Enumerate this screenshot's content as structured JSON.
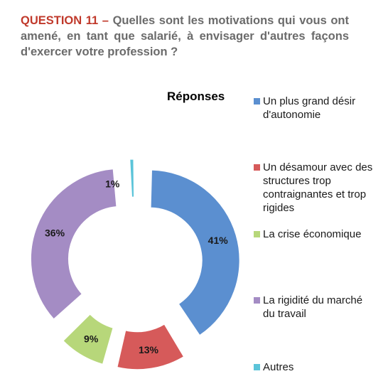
{
  "question": {
    "label": "QUESTION 11 –",
    "text": "Quelles sont les motivations qui vous ont amené, en tant que salarié, à envisager d'autres façons d'exercer votre profession ?"
  },
  "chart_data": {
    "type": "pie",
    "title": "Réponses",
    "legend_position": "right",
    "categories": [
      "Un plus grand désir d'autonomie",
      "Un désamour avec des structures trop contraignantes et trop rigides",
      "La crise économique",
      "La rigidité du marché du travail",
      "Autres"
    ],
    "values": [
      41,
      13,
      9,
      36,
      1
    ],
    "labels": [
      "41%",
      "13%",
      "9%",
      "36%",
      "1%"
    ],
    "colors": [
      "#5b8fd0",
      "#d65a5a",
      "#b7d77a",
      "#a48cc4",
      "#5bc4d9"
    ]
  }
}
